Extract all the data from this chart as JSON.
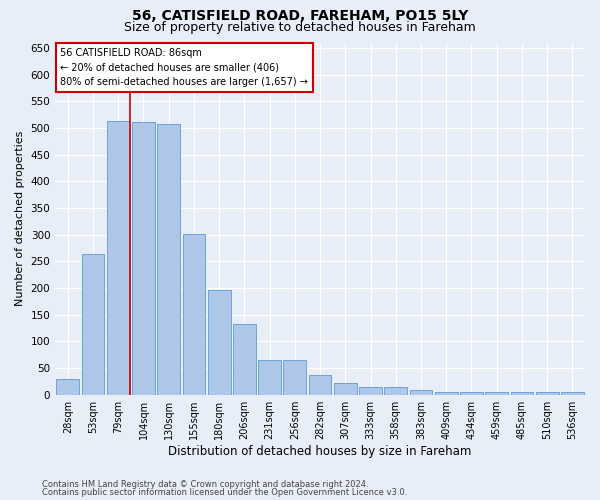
{
  "title1": "56, CATISFIELD ROAD, FAREHAM, PO15 5LY",
  "title2": "Size of property relative to detached houses in Fareham",
  "xlabel": "Distribution of detached houses by size in Fareham",
  "ylabel": "Number of detached properties",
  "categories": [
    "28sqm",
    "53sqm",
    "79sqm",
    "104sqm",
    "130sqm",
    "155sqm",
    "180sqm",
    "206sqm",
    "231sqm",
    "256sqm",
    "282sqm",
    "307sqm",
    "333sqm",
    "358sqm",
    "383sqm",
    "409sqm",
    "434sqm",
    "459sqm",
    "485sqm",
    "510sqm",
    "536sqm"
  ],
  "values": [
    30,
    263,
    512,
    511,
    507,
    302,
    196,
    132,
    65,
    65,
    37,
    22,
    15,
    15,
    8,
    5,
    5,
    5,
    5,
    5,
    5
  ],
  "bar_color": "#aec6e8",
  "bar_edge_color": "#5b9bd5",
  "vline_x": 2.45,
  "vline_color": "#cc0000",
  "annotation_text": "56 CATISFIELD ROAD: 86sqm\n← 20% of detached houses are smaller (406)\n80% of semi-detached houses are larger (1,657) →",
  "annotation_box_facecolor": "#ffffff",
  "annotation_box_edgecolor": "#cc0000",
  "footer1": "Contains HM Land Registry data © Crown copyright and database right 2024.",
  "footer2": "Contains public sector information licensed under the Open Government Licence v3.0.",
  "ylim_max": 660,
  "yticks": [
    0,
    50,
    100,
    150,
    200,
    250,
    300,
    350,
    400,
    450,
    500,
    550,
    600,
    650
  ],
  "bg_color": "#e8eef8",
  "grid_color": "#ffffff",
  "title1_fontsize": 10,
  "title2_fontsize": 9,
  "ylabel_fontsize": 8,
  "xlabel_fontsize": 8.5,
  "tick_fontsize": 7.5,
  "xtick_fontsize": 7,
  "ann_fontsize": 7,
  "footer_fontsize": 6
}
